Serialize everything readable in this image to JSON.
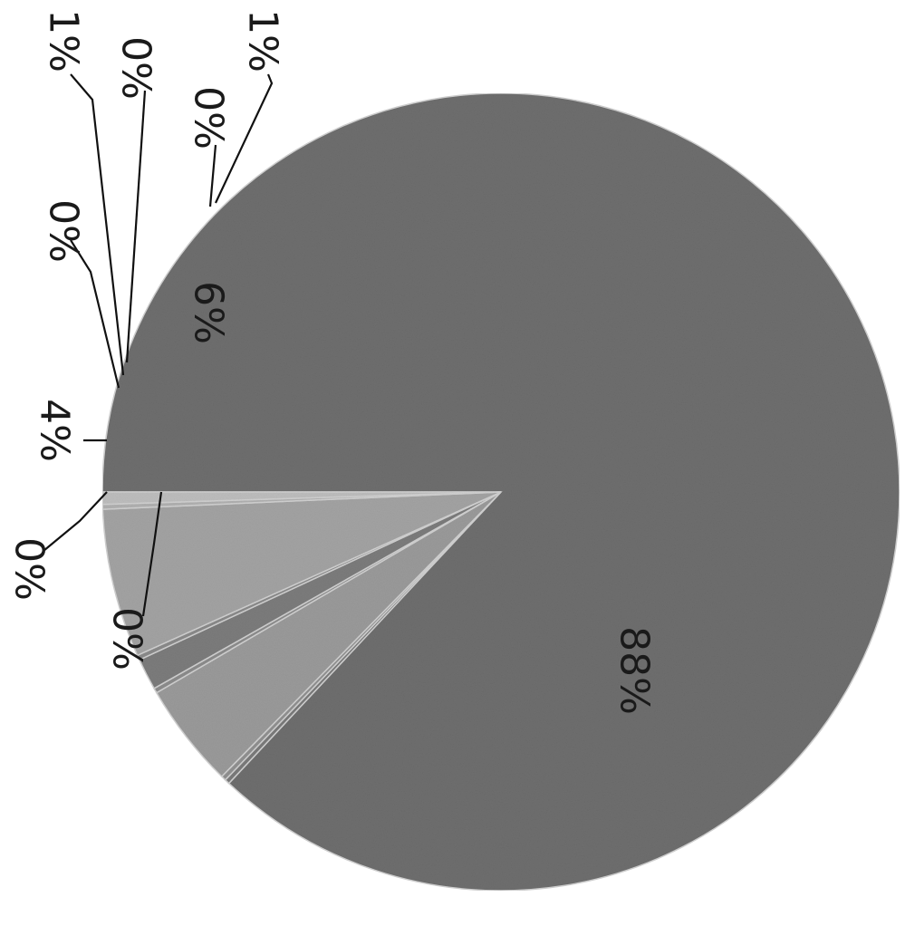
{
  "chart_data": {
    "type": "pie",
    "title": "",
    "slices": [
      {
        "label": "88%",
        "value": 88,
        "color": "#6e6e6e"
      },
      {
        "label": "0%",
        "value": 0.2,
        "color": "#7a7a7a"
      },
      {
        "label": "0%",
        "value": 0.2,
        "color": "#909090"
      },
      {
        "label": "4%",
        "value": 4.3,
        "color": "#9a9a9a"
      },
      {
        "label": "0%",
        "value": 0.2,
        "color": "#8c8c8c"
      },
      {
        "label": "1%",
        "value": 1.3,
        "color": "#7c7c7c"
      },
      {
        "label": "0%",
        "value": 0.2,
        "color": "#8a8a8a"
      },
      {
        "label": "6%",
        "value": 6.1,
        "color": "#a3a3a3"
      },
      {
        "label": "0%",
        "value": 0.2,
        "color": "#b0b0b0"
      },
      {
        "label": "1%",
        "value": 0.5,
        "color": "#bdbdbd"
      }
    ]
  }
}
